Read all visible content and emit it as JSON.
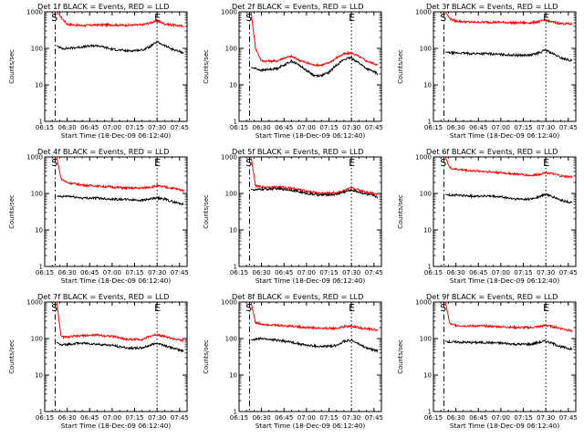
{
  "figure": {
    "start_label": "Start Time (18-Dec-09 06:12:40)",
    "ylabel": "Counts/sec",
    "marker_start": "S",
    "marker_end": "E"
  },
  "chart_data": [
    {
      "type": "line",
      "title": "Det 1f BLACK = Events, RED = LLD",
      "xlabel": "Start Time (18-Dec-09 06:12:40)",
      "ylabel": "Counts/sec",
      "x_ticks": [
        "06:15",
        "06:30",
        "06:45",
        "07:00",
        "07:15",
        "07:30",
        "07:45"
      ],
      "y_ticks": [
        "1",
        "10",
        "100",
        "1000"
      ],
      "y_scale": "log",
      "ylim": [
        1,
        1000
      ],
      "xlim_minutes": [
        375,
        470
      ],
      "markers": {
        "S": 380,
        "E": 450
      },
      "dash_dot_line_min": 382,
      "dotted_line_min": 450,
      "x_minutes": [
        383,
        386,
        390,
        400,
        410,
        420,
        430,
        440,
        445,
        450,
        455,
        460,
        468
      ],
      "series": [
        {
          "name": "RED = LLD",
          "color": "#ff0000",
          "values": [
            1000,
            700,
            460,
            420,
            440,
            440,
            430,
            440,
            500,
            560,
            470,
            440,
            400
          ]
        },
        {
          "name": "BLACK = Events",
          "color": "#000000",
          "values": [
            120,
            100,
            100,
            110,
            120,
            95,
            85,
            90,
            110,
            150,
            120,
            95,
            75
          ]
        }
      ]
    },
    {
      "type": "line",
      "title": "Det 2f BLACK = Events, RED = LLD",
      "xlabel": "Start Time (18-Dec-09 06:12:40)",
      "ylabel": "Counts/sec",
      "x_ticks": [
        "06:15",
        "06:30",
        "06:45",
        "07:00",
        "07:15",
        "07:30",
        "07:45"
      ],
      "y_ticks": [
        "1",
        "10",
        "100",
        "1000"
      ],
      "y_scale": "log",
      "ylim": [
        1,
        1000
      ],
      "xlim_minutes": [
        375,
        470
      ],
      "markers": {
        "S": 380,
        "E": 450
      },
      "dash_dot_line_min": 382,
      "dotted_line_min": 450,
      "x_minutes": [
        383,
        386,
        390,
        400,
        405,
        410,
        415,
        420,
        425,
        430,
        435,
        440,
        445,
        450,
        455,
        460,
        468
      ],
      "series": [
        {
          "name": "RED = LLD",
          "color": "#ff0000",
          "values": [
            1000,
            100,
            45,
            45,
            55,
            60,
            48,
            40,
            35,
            35,
            40,
            55,
            70,
            75,
            60,
            45,
            35
          ]
        },
        {
          "name": "BLACK = Events",
          "color": "#000000",
          "values": [
            30,
            28,
            25,
            28,
            35,
            45,
            35,
            25,
            18,
            18,
            22,
            35,
            50,
            55,
            40,
            28,
            20
          ]
        }
      ]
    },
    {
      "type": "line",
      "title": "Det 3f BLACK = Events, RED = LLD",
      "xlabel": "Start Time (18-Dec-09 06:12:40)",
      "ylabel": "Counts/sec",
      "x_ticks": [
        "06:15",
        "06:30",
        "06:45",
        "07:00",
        "07:15",
        "07:30",
        "07:45"
      ],
      "y_ticks": [
        "1",
        "10",
        "100",
        "1000"
      ],
      "y_scale": "log",
      "ylim": [
        1,
        1000
      ],
      "xlim_minutes": [
        375,
        470
      ],
      "markers": {
        "S": 380,
        "E": 450
      },
      "dash_dot_line_min": 382,
      "dotted_line_min": 450,
      "x_minutes": [
        383,
        386,
        390,
        400,
        410,
        420,
        430,
        440,
        445,
        450,
        455,
        460,
        468
      ],
      "series": [
        {
          "name": "RED = LLD",
          "color": "#ff0000",
          "values": [
            1000,
            650,
            560,
            520,
            520,
            520,
            500,
            500,
            540,
            580,
            520,
            480,
            460
          ]
        },
        {
          "name": "BLACK = Events",
          "color": "#000000",
          "values": [
            80,
            75,
            75,
            72,
            72,
            68,
            65,
            65,
            75,
            90,
            70,
            55,
            45
          ]
        }
      ]
    },
    {
      "type": "line",
      "title": "Det 4f BLACK = Events, RED = LLD",
      "xlabel": "Start Time (18-Dec-09 06:12:40)",
      "ylabel": "Counts/sec",
      "x_ticks": [
        "06:15",
        "06:30",
        "06:45",
        "07:00",
        "07:15",
        "07:30",
        "07:45"
      ],
      "y_ticks": [
        "1",
        "10",
        "100",
        "1000"
      ],
      "y_scale": "log",
      "ylim": [
        1,
        1000
      ],
      "xlim_minutes": [
        375,
        470
      ],
      "markers": {
        "S": 380,
        "E": 450
      },
      "dash_dot_line_min": 382,
      "dotted_line_min": 450,
      "x_minutes": [
        383,
        386,
        390,
        400,
        410,
        420,
        430,
        440,
        445,
        450,
        455,
        460,
        468
      ],
      "series": [
        {
          "name": "RED = LLD",
          "color": "#ff0000",
          "values": [
            1000,
            250,
            200,
            170,
            160,
            150,
            140,
            140,
            150,
            160,
            150,
            140,
            120
          ]
        },
        {
          "name": "BLACK = Events",
          "color": "#000000",
          "values": [
            85,
            80,
            85,
            75,
            75,
            70,
            68,
            65,
            70,
            75,
            70,
            60,
            50
          ]
        }
      ]
    },
    {
      "type": "line",
      "title": "Det 5f BLACK = Events, RED = LLD",
      "xlabel": "Start Time (18-Dec-09 06:12:40)",
      "ylabel": "Counts/sec",
      "x_ticks": [
        "06:15",
        "06:30",
        "06:45",
        "07:00",
        "07:15",
        "07:30",
        "07:45"
      ],
      "y_ticks": [
        "1",
        "10",
        "100",
        "1000"
      ],
      "y_scale": "log",
      "ylim": [
        1,
        1000
      ],
      "xlim_minutes": [
        375,
        470
      ],
      "markers": {
        "S": 380,
        "E": 450
      },
      "dash_dot_line_min": 382,
      "dotted_line_min": 450,
      "x_minutes": [
        383,
        386,
        390,
        400,
        410,
        420,
        430,
        440,
        445,
        450,
        455,
        460,
        468
      ],
      "series": [
        {
          "name": "RED = LLD",
          "color": "#ff0000",
          "values": [
            1000,
            160,
            150,
            150,
            140,
            115,
            100,
            105,
            120,
            140,
            125,
            110,
            95
          ]
        },
        {
          "name": "BLACK = Events",
          "color": "#000000",
          "values": [
            130,
            125,
            130,
            135,
            125,
            100,
            90,
            95,
            110,
            125,
            110,
            95,
            80
          ]
        }
      ]
    },
    {
      "type": "line",
      "title": "Det 6f BLACK = Events, RED = LLD",
      "xlabel": "Start Time (18-Dec-09 06:12:40)",
      "ylabel": "Counts/sec",
      "x_ticks": [
        "06:15",
        "06:30",
        "06:45",
        "07:00",
        "07:15",
        "07:30",
        "07:45"
      ],
      "y_ticks": [
        "1",
        "10",
        "100",
        "1000"
      ],
      "y_scale": "log",
      "ylim": [
        1,
        1000
      ],
      "xlim_minutes": [
        375,
        470
      ],
      "markers": {
        "S": 380,
        "E": 450
      },
      "dash_dot_line_min": 382,
      "dotted_line_min": 450,
      "x_minutes": [
        383,
        386,
        390,
        400,
        410,
        420,
        430,
        440,
        445,
        450,
        455,
        460,
        468
      ],
      "series": [
        {
          "name": "RED = LLD",
          "color": "#ff0000",
          "values": [
            1000,
            500,
            460,
            420,
            400,
            370,
            340,
            310,
            330,
            380,
            340,
            300,
            280
          ]
        },
        {
          "name": "BLACK = Events",
          "color": "#000000",
          "values": [
            95,
            90,
            90,
            85,
            85,
            80,
            70,
            70,
            80,
            95,
            80,
            65,
            55
          ]
        }
      ]
    },
    {
      "type": "line",
      "title": "Det 7f BLACK = Events, RED = LLD",
      "xlabel": "Start Time (18-Dec-09 06:12:40)",
      "ylabel": "Counts/sec",
      "x_ticks": [
        "06:15",
        "06:30",
        "06:45",
        "07:00",
        "07:15",
        "07:30",
        "07:45"
      ],
      "y_ticks": [
        "1",
        "10",
        "100",
        "1000"
      ],
      "y_scale": "log",
      "ylim": [
        1,
        1000
      ],
      "xlim_minutes": [
        375,
        470
      ],
      "markers": {
        "S": 380,
        "E": 450
      },
      "dash_dot_line_min": 382,
      "dotted_line_min": 450,
      "x_minutes": [
        383,
        386,
        390,
        400,
        410,
        420,
        430,
        440,
        445,
        450,
        455,
        460,
        468
      ],
      "series": [
        {
          "name": "RED = LLD",
          "color": "#ff0000",
          "values": [
            1000,
            110,
            110,
            120,
            125,
            115,
            95,
            95,
            115,
            130,
            115,
            100,
            85
          ]
        },
        {
          "name": "BLACK = Events",
          "color": "#000000",
          "values": [
            80,
            65,
            70,
            75,
            70,
            65,
            55,
            55,
            65,
            75,
            65,
            55,
            45
          ]
        }
      ]
    },
    {
      "type": "line",
      "title": "Det 8f BLACK = Events, RED = LLD",
      "xlabel": "Start Time (18-Dec-09 06:12:40)",
      "ylabel": "Counts/sec",
      "x_ticks": [
        "06:15",
        "06:30",
        "06:45",
        "07:00",
        "07:15",
        "07:30",
        "07:45"
      ],
      "y_ticks": [
        "1",
        "10",
        "100",
        "1000"
      ],
      "y_scale": "log",
      "ylim": [
        1,
        1000
      ],
      "xlim_minutes": [
        375,
        470
      ],
      "markers": {
        "S": 380,
        "E": 450
      },
      "dash_dot_line_min": 382,
      "dotted_line_min": 450,
      "x_minutes": [
        383,
        386,
        390,
        400,
        410,
        420,
        430,
        440,
        445,
        450,
        455,
        460,
        468
      ],
      "series": [
        {
          "name": "RED = LLD",
          "color": "#ff0000",
          "values": [
            1000,
            270,
            250,
            230,
            220,
            200,
            190,
            190,
            210,
            220,
            200,
            185,
            170
          ]
        },
        {
          "name": "BLACK = Events",
          "color": "#000000",
          "values": [
            90,
            95,
            100,
            90,
            80,
            65,
            60,
            65,
            85,
            90,
            70,
            55,
            45
          ]
        }
      ]
    },
    {
      "type": "line",
      "title": "Det 9f BLACK = Events, RED = LLD",
      "xlabel": "Start Time (18-Dec-09 06:12:40)",
      "ylabel": "Counts/sec",
      "x_ticks": [
        "06:15",
        "06:30",
        "06:45",
        "07:00",
        "07:15",
        "07:30",
        "07:45"
      ],
      "y_ticks": [
        "1",
        "10",
        "100",
        "1000"
      ],
      "y_scale": "log",
      "ylim": [
        1,
        1000
      ],
      "xlim_minutes": [
        375,
        470
      ],
      "markers": {
        "S": 380,
        "E": 450
      },
      "dash_dot_line_min": 382,
      "dotted_line_min": 450,
      "x_minutes": [
        383,
        386,
        390,
        400,
        410,
        420,
        430,
        440,
        445,
        450,
        455,
        460,
        468
      ],
      "series": [
        {
          "name": "RED = LLD",
          "color": "#ff0000",
          "values": [
            1000,
            250,
            230,
            220,
            220,
            210,
            200,
            200,
            210,
            230,
            210,
            190,
            160
          ]
        },
        {
          "name": "BLACK = Events",
          "color": "#000000",
          "values": [
            85,
            80,
            80,
            78,
            78,
            75,
            70,
            70,
            78,
            85,
            72,
            60,
            50
          ]
        }
      ]
    }
  ]
}
